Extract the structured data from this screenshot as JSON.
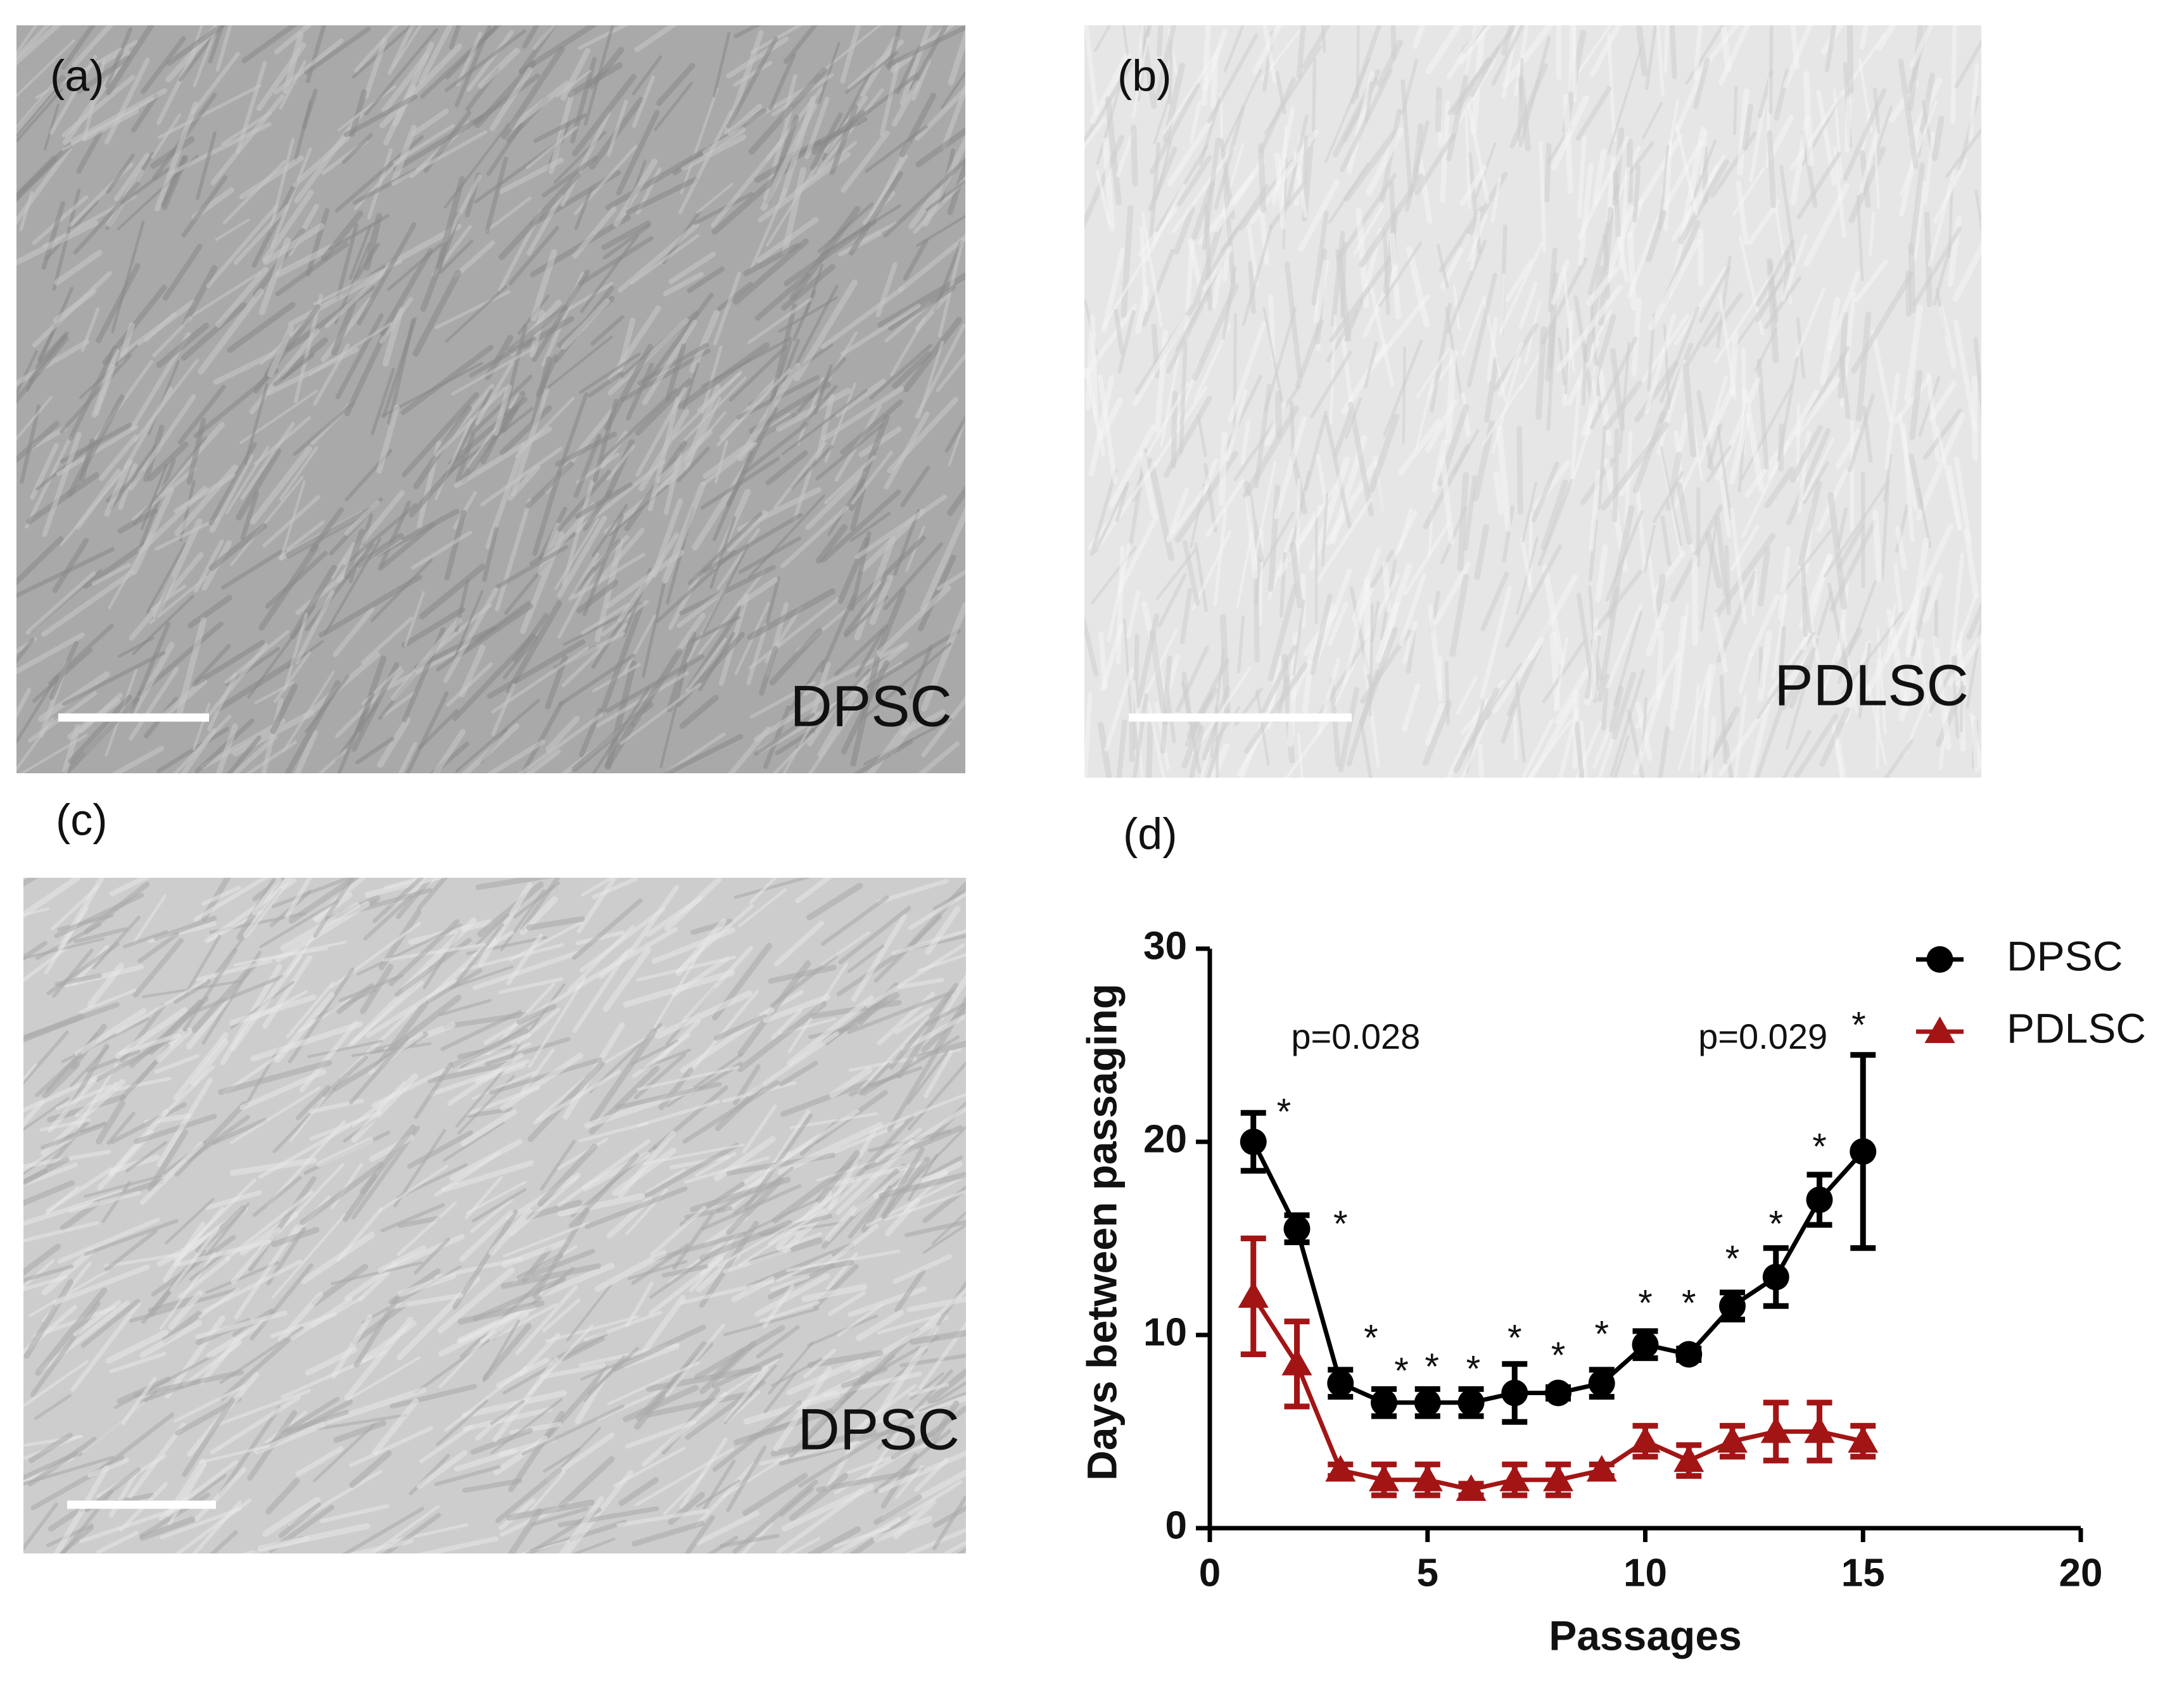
{
  "panels": [
    {
      "label": "(a)",
      "caption": "DPSC"
    },
    {
      "label": "(b)",
      "caption": "PDLSC"
    },
    {
      "label": "(c)",
      "caption": "DPSC"
    }
  ],
  "chart_data": {
    "type": "line",
    "label": "(d)",
    "xlabel": "Passages",
    "ylabel": "Days between passaging",
    "x": [
      1,
      2,
      3,
      4,
      5,
      6,
      7,
      8,
      9,
      10,
      11,
      12,
      13,
      14,
      15
    ],
    "series": [
      {
        "name": "DPSC",
        "color": "#000000",
        "marker": "circle",
        "values": [
          20,
          15.5,
          7.5,
          6.5,
          6.5,
          6.5,
          7,
          7,
          7.5,
          9.5,
          9,
          11.5,
          13,
          17,
          19.5
        ],
        "errors": [
          1.5,
          0.7,
          0.7,
          0.7,
          0.7,
          0.7,
          1.5,
          0.3,
          0.7,
          0.7,
          0.3,
          0.7,
          1.5,
          1.3,
          5
        ]
      },
      {
        "name": "PDLSC",
        "color": "#a31515",
        "marker": "triangle",
        "values": [
          12,
          8.5,
          3,
          2.5,
          2.5,
          2,
          2.5,
          2.5,
          3,
          4.5,
          3.5,
          4.5,
          5,
          5,
          4.5
        ],
        "errors": [
          3,
          2.2,
          0.3,
          0.8,
          0.8,
          0.3,
          0.8,
          0.8,
          0.3,
          0.8,
          0.8,
          0.8,
          1.5,
          1.5,
          0.8
        ]
      }
    ],
    "xlim": [
      0,
      20
    ],
    "xticks": [
      0,
      5,
      10,
      15,
      20
    ],
    "ylim": [
      0,
      30
    ],
    "yticks": [
      0,
      10,
      20,
      30
    ],
    "legend": "upper right",
    "annotations": [
      {
        "text": "p=0.028",
        "x": 3.35,
        "y": 25.3
      },
      {
        "text": "p=0.029",
        "x": 12.7,
        "y": 25.3
      },
      {
        "text": "*",
        "x": 1.7,
        "y": 21.4
      },
      {
        "text": "*",
        "x": 3.0,
        "y": 15.6
      },
      {
        "text": "*",
        "x": 3.7,
        "y": 9.7
      },
      {
        "text": "*",
        "x": 4.4,
        "y": 8.0
      },
      {
        "text": "*",
        "x": 5.1,
        "y": 8.2
      },
      {
        "text": "*",
        "x": 6.05,
        "y": 8.1
      },
      {
        "text": "*",
        "x": 7.0,
        "y": 9.7
      },
      {
        "text": "*",
        "x": 8.0,
        "y": 8.8
      },
      {
        "text": "*",
        "x": 9.0,
        "y": 9.9
      },
      {
        "text": "*",
        "x": 10.0,
        "y": 11.5
      },
      {
        "text": "*",
        "x": 11.0,
        "y": 11.5
      },
      {
        "text": "*",
        "x": 12.0,
        "y": 13.8
      },
      {
        "text": "*",
        "x": 13.0,
        "y": 15.6
      },
      {
        "text": "*",
        "x": 14.0,
        "y": 19.6
      },
      {
        "text": "*",
        "x": 14.9,
        "y": 25.9
      }
    ]
  }
}
